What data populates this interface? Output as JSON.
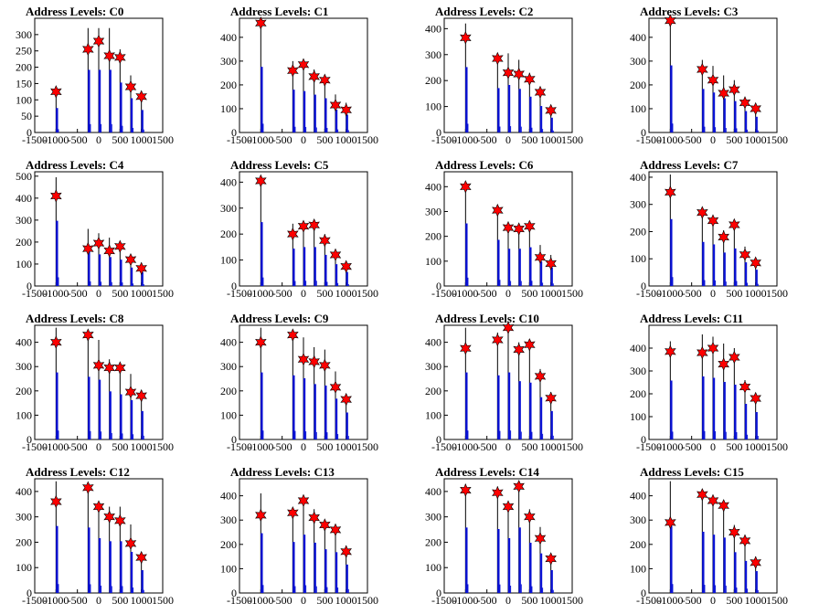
{
  "chart_data": [
    {
      "type": "histogram",
      "title": "Address Levels: C0",
      "xlim": [
        -1500,
        1500
      ],
      "ylim": [
        0,
        350
      ],
      "yticks": [
        0,
        50,
        100,
        150,
        200,
        250,
        300
      ],
      "xticks": [
        -1500,
        -1000,
        -500,
        0,
        500,
        1000,
        1500
      ],
      "x": [
        -1000,
        -250,
        0,
        250,
        500,
        750,
        1000
      ],
      "peaks": [
        125,
        320,
        320,
        320,
        255,
        175,
        115
      ],
      "markers": [
        125,
        255,
        280,
        235,
        230,
        140,
        110
      ]
    },
    {
      "type": "histogram",
      "title": "Address Levels: C1",
      "xlim": [
        -1500,
        1500
      ],
      "ylim": [
        0,
        480
      ],
      "yticks": [
        0,
        100,
        200,
        300,
        400
      ],
      "xticks": [
        -1500,
        -1000,
        -500,
        0,
        500,
        1000,
        1500
      ],
      "x": [
        -1000,
        -250,
        0,
        250,
        500,
        750,
        1000
      ],
      "peaks": [
        460,
        300,
        290,
        265,
        240,
        160,
        125
      ],
      "markers": [
        460,
        260,
        285,
        235,
        220,
        115,
        95
      ]
    },
    {
      "type": "histogram",
      "title": "Address Levels: C2",
      "xlim": [
        -1500,
        1500
      ],
      "ylim": [
        0,
        440
      ],
      "yticks": [
        0,
        100,
        200,
        300,
        400
      ],
      "xticks": [
        -1500,
        -1000,
        -500,
        0,
        500,
        1000,
        1500
      ],
      "x": [
        -1000,
        -250,
        0,
        250,
        500,
        750,
        1000
      ],
      "peaks": [
        420,
        285,
        305,
        280,
        230,
        170,
        95
      ],
      "markers": [
        365,
        285,
        230,
        225,
        205,
        155,
        85
      ]
    },
    {
      "type": "histogram",
      "title": "Address Levels: C3",
      "xlim": [
        -1500,
        1500
      ],
      "ylim": [
        0,
        480
      ],
      "yticks": [
        0,
        100,
        200,
        300,
        400
      ],
      "xticks": [
        -1500,
        -1000,
        -500,
        0,
        500,
        1000,
        1500
      ],
      "x": [
        -1000,
        -250,
        0,
        250,
        500,
        750,
        1000
      ],
      "peaks": [
        470,
        305,
        280,
        240,
        220,
        150,
        110
      ],
      "markers": [
        470,
        265,
        220,
        165,
        180,
        125,
        100
      ]
    },
    {
      "type": "histogram",
      "title": "Address Levels: C4",
      "xlim": [
        -1500,
        1500
      ],
      "ylim": [
        0,
        520
      ],
      "yticks": [
        0,
        100,
        200,
        300,
        400,
        500
      ],
      "xticks": [
        -1500,
        -1000,
        -500,
        0,
        500,
        1000,
        1500
      ],
      "x": [
        -1000,
        -250,
        0,
        250,
        500,
        750,
        1000
      ],
      "peaks": [
        495,
        260,
        240,
        220,
        200,
        140,
        105
      ],
      "markers": [
        410,
        170,
        195,
        160,
        180,
        120,
        80
      ]
    },
    {
      "type": "histogram",
      "title": "Address Levels: C5",
      "xlim": [
        -1500,
        1500
      ],
      "ylim": [
        0,
        440
      ],
      "yticks": [
        0,
        100,
        200,
        300,
        400
      ],
      "xticks": [
        -1500,
        -1000,
        -500,
        0,
        500,
        1000,
        1500
      ],
      "x": [
        -1000,
        -250,
        0,
        250,
        500,
        750,
        1000
      ],
      "peaks": [
        410,
        240,
        250,
        250,
        200,
        140,
        90
      ],
      "markers": [
        405,
        200,
        230,
        235,
        175,
        120,
        75
      ]
    },
    {
      "type": "histogram",
      "title": "Address Levels: C6",
      "xlim": [
        -1500,
        1500
      ],
      "ylim": [
        0,
        460
      ],
      "yticks": [
        0,
        100,
        200,
        300,
        400
      ],
      "xticks": [
        -1500,
        -1000,
        -500,
        0,
        500,
        1000,
        1500
      ],
      "x": [
        -1000,
        -250,
        0,
        250,
        500,
        750,
        1000
      ],
      "peaks": [
        420,
        310,
        250,
        250,
        260,
        165,
        125
      ],
      "markers": [
        400,
        305,
        235,
        230,
        240,
        115,
        90
      ]
    },
    {
      "type": "histogram",
      "title": "Address Levels: C7",
      "xlim": [
        -1500,
        1500
      ],
      "ylim": [
        0,
        420
      ],
      "yticks": [
        0,
        100,
        200,
        300,
        400
      ],
      "xticks": [
        -1500,
        -1000,
        -500,
        0,
        500,
        1000,
        1500
      ],
      "x": [
        -1000,
        -250,
        0,
        250,
        500,
        750,
        1000
      ],
      "peaks": [
        410,
        270,
        255,
        205,
        230,
        145,
        100
      ],
      "markers": [
        345,
        270,
        240,
        180,
        225,
        115,
        85
      ]
    },
    {
      "type": "histogram",
      "title": "Address Levels: C8",
      "xlim": [
        -1500,
        1500
      ],
      "ylim": [
        0,
        470
      ],
      "yticks": [
        0,
        100,
        200,
        300,
        400
      ],
      "xticks": [
        -1500,
        -1000,
        -500,
        0,
        500,
        1000,
        1500
      ],
      "x": [
        -1000,
        -250,
        0,
        250,
        500,
        750,
        1000
      ],
      "peaks": [
        460,
        430,
        410,
        330,
        310,
        270,
        195
      ],
      "markers": [
        400,
        430,
        305,
        295,
        295,
        195,
        180
      ]
    },
    {
      "type": "histogram",
      "title": "Address Levels: C9",
      "xlim": [
        -1500,
        1500
      ],
      "ylim": [
        0,
        470
      ],
      "yticks": [
        0,
        100,
        200,
        300,
        400
      ],
      "xticks": [
        -1500,
        -1000,
        -500,
        0,
        500,
        1000,
        1500
      ],
      "x": [
        -1000,
        -250,
        0,
        250,
        500,
        750,
        1000
      ],
      "peaks": [
        460,
        440,
        420,
        380,
        370,
        280,
        185
      ],
      "markers": [
        400,
        430,
        330,
        320,
        305,
        215,
        165
      ]
    },
    {
      "type": "histogram",
      "title": "Address Levels: C10",
      "xlim": [
        -1500,
        1500
      ],
      "ylim": [
        0,
        470
      ],
      "yticks": [
        0,
        100,
        200,
        300,
        400
      ],
      "xticks": [
        -1500,
        -1000,
        -500,
        0,
        500,
        1000,
        1500
      ],
      "x": [
        -1000,
        -250,
        0,
        250,
        500,
        750,
        1000
      ],
      "peaks": [
        460,
        440,
        460,
        400,
        390,
        290,
        195
      ],
      "markers": [
        375,
        410,
        460,
        370,
        390,
        260,
        170
      ]
    },
    {
      "type": "histogram",
      "title": "Address Levels: C11",
      "xlim": [
        -1500,
        1500
      ],
      "ylim": [
        0,
        500
      ],
      "yticks": [
        0,
        100,
        200,
        300,
        400
      ],
      "xticks": [
        -1500,
        -1000,
        -500,
        0,
        500,
        1000,
        1500
      ],
      "x": [
        -1000,
        -250,
        0,
        250,
        500,
        750,
        1000
      ],
      "peaks": [
        430,
        460,
        450,
        420,
        400,
        260,
        200
      ],
      "markers": [
        385,
        380,
        400,
        330,
        360,
        230,
        180
      ]
    },
    {
      "type": "histogram",
      "title": "Address Levels: C12",
      "xlim": [
        -1500,
        1500
      ],
      "ylim": [
        0,
        450
      ],
      "yticks": [
        0,
        100,
        200,
        300,
        400
      ],
      "xticks": [
        -1500,
        -1000,
        -500,
        0,
        500,
        1000,
        1500
      ],
      "x": [
        -1000,
        -250,
        0,
        250,
        500,
        750,
        1000
      ],
      "peaks": [
        440,
        430,
        360,
        340,
        340,
        270,
        150
      ],
      "markers": [
        360,
        415,
        340,
        300,
        285,
        195,
        140
      ]
    },
    {
      "type": "histogram",
      "title": "Address Levels: C13",
      "xlim": [
        -1500,
        1500
      ],
      "ylim": [
        0,
        470
      ],
      "yticks": [
        0,
        100,
        200,
        300,
        400
      ],
      "xticks": [
        -1500,
        -1000,
        -500,
        0,
        500,
        1000,
        1500
      ],
      "x": [
        -1000,
        -250,
        0,
        250,
        500,
        750,
        1000
      ],
      "peaks": [
        410,
        350,
        400,
        345,
        300,
        280,
        195
      ],
      "markers": [
        320,
        330,
        380,
        310,
        280,
        260,
        170
      ]
    },
    {
      "type": "histogram",
      "title": "Address Levels: C14",
      "xlim": [
        -1500,
        1500
      ],
      "ylim": [
        0,
        450
      ],
      "yticks": [
        0,
        100,
        200,
        300,
        400
      ],
      "xticks": [
        -1500,
        -1000,
        -500,
        0,
        500,
        1000,
        1500
      ],
      "x": [
        -1000,
        -250,
        0,
        250,
        500,
        750,
        1000
      ],
      "peaks": [
        430,
        420,
        360,
        430,
        330,
        260,
        150
      ],
      "markers": [
        405,
        395,
        340,
        420,
        300,
        215,
        135
      ]
    },
    {
      "type": "histogram",
      "title": "Address Levels: C15",
      "xlim": [
        -1500,
        1500
      ],
      "ylim": [
        0,
        470
      ],
      "yticks": [
        0,
        100,
        200,
        300,
        400
      ],
      "xticks": [
        -1500,
        -1000,
        -500,
        0,
        500,
        1000,
        1500
      ],
      "x": [
        -1000,
        -250,
        0,
        250,
        500,
        750,
        1000
      ],
      "peaks": [
        460,
        420,
        400,
        380,
        280,
        220,
        150
      ],
      "markers": [
        290,
        405,
        380,
        360,
        250,
        215,
        125
      ]
    }
  ]
}
